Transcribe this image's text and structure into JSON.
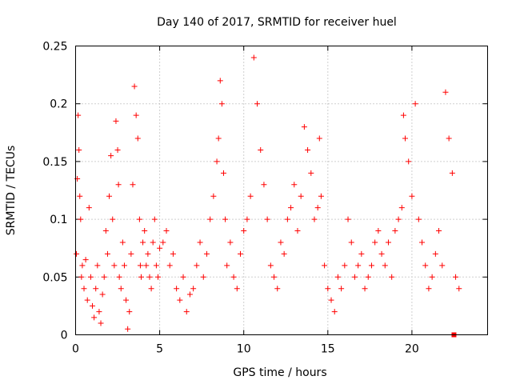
{
  "chart_data": {
    "type": "scatter",
    "title": "Day 140 of 2017, SRMTID for receiver huel",
    "xlabel": "GPS time / hours",
    "ylabel": "SRMTID / TECUs",
    "xlim": [
      0,
      24.5
    ],
    "ylim": [
      0,
      0.25
    ],
    "x_ticks": [
      0,
      5,
      10,
      15,
      20
    ],
    "x_tick_labels": [
      "0",
      "5",
      "10",
      "15",
      "20"
    ],
    "y_ticks": [
      0,
      0.05,
      0.1,
      0.15,
      0.2,
      0.25
    ],
    "y_tick_labels": [
      "0",
      "0.05",
      "0.1",
      "0.15",
      "0.2",
      "0.25"
    ],
    "grid": true,
    "marker": "plus",
    "marker_color": "#ff0000",
    "series": [
      {
        "name": "SRMTID",
        "x": [
          0.05,
          0.1,
          0.15,
          0.2,
          0.25,
          0.3,
          0.35,
          0.4,
          0.5,
          0.6,
          0.7,
          0.8,
          0.9,
          1.0,
          1.1,
          1.2,
          1.3,
          1.4,
          1.5,
          1.6,
          1.7,
          1.8,
          1.9,
          2.0,
          2.1,
          2.2,
          2.3,
          2.4,
          2.5,
          2.55,
          2.6,
          2.7,
          2.8,
          2.9,
          3.0,
          3.1,
          3.2,
          3.3,
          3.4,
          3.5,
          3.6,
          3.7,
          3.8,
          3.85,
          3.9,
          4.0,
          4.1,
          4.2,
          4.3,
          4.4,
          4.5,
          4.6,
          4.7,
          4.8,
          4.9,
          5.0,
          5.2,
          5.4,
          5.6,
          5.8,
          6.0,
          6.2,
          6.4,
          6.6,
          6.8,
          7.0,
          7.2,
          7.4,
          7.6,
          7.8,
          8.0,
          8.2,
          8.4,
          8.5,
          8.6,
          8.7,
          8.8,
          8.9,
          9.0,
          9.2,
          9.4,
          9.6,
          9.8,
          10.0,
          10.2,
          10.4,
          10.6,
          10.8,
          11.0,
          11.2,
          11.4,
          11.6,
          11.8,
          12.0,
          12.2,
          12.4,
          12.6,
          12.8,
          13.0,
          13.2,
          13.4,
          13.6,
          13.8,
          14.0,
          14.2,
          14.4,
          14.5,
          14.6,
          14.8,
          15.0,
          15.2,
          15.4,
          15.6,
          15.8,
          16.0,
          16.2,
          16.4,
          16.6,
          16.8,
          17.0,
          17.2,
          17.4,
          17.6,
          17.8,
          18.0,
          18.2,
          18.4,
          18.6,
          18.8,
          19.0,
          19.2,
          19.4,
          19.5,
          19.6,
          19.8,
          20.0,
          20.2,
          20.4,
          20.6,
          20.8,
          21.0,
          21.2,
          21.4,
          21.6,
          21.8,
          22.0,
          22.2,
          22.4,
          22.6,
          22.8
        ],
        "y": [
          0.07,
          0.135,
          0.19,
          0.16,
          0.12,
          0.1,
          0.05,
          0.06,
          0.04,
          0.065,
          0.03,
          0.11,
          0.05,
          0.025,
          0.015,
          0.04,
          0.06,
          0.02,
          0.01,
          0.035,
          0.05,
          0.09,
          0.07,
          0.12,
          0.155,
          0.1,
          0.06,
          0.185,
          0.16,
          0.13,
          0.05,
          0.04,
          0.08,
          0.06,
          0.03,
          0.005,
          0.02,
          0.07,
          0.13,
          0.215,
          0.19,
          0.17,
          0.1,
          0.06,
          0.05,
          0.08,
          0.09,
          0.06,
          0.07,
          0.05,
          0.04,
          0.08,
          0.1,
          0.06,
          0.05,
          0.075,
          0.08,
          0.09,
          0.06,
          0.07,
          0.04,
          0.03,
          0.05,
          0.02,
          0.035,
          0.04,
          0.06,
          0.08,
          0.05,
          0.07,
          0.1,
          0.12,
          0.15,
          0.17,
          0.22,
          0.2,
          0.14,
          0.1,
          0.06,
          0.08,
          0.05,
          0.04,
          0.07,
          0.09,
          0.1,
          0.12,
          0.24,
          0.2,
          0.16,
          0.13,
          0.1,
          0.06,
          0.05,
          0.04,
          0.08,
          0.07,
          0.1,
          0.11,
          0.13,
          0.09,
          0.12,
          0.18,
          0.16,
          0.14,
          0.1,
          0.11,
          0.17,
          0.12,
          0.06,
          0.04,
          0.03,
          0.02,
          0.05,
          0.04,
          0.06,
          0.1,
          0.08,
          0.05,
          0.06,
          0.07,
          0.04,
          0.05,
          0.06,
          0.08,
          0.09,
          0.07,
          0.06,
          0.08,
          0.05,
          0.09,
          0.1,
          0.11,
          0.19,
          0.17,
          0.15,
          0.12,
          0.2,
          0.1,
          0.08,
          0.06,
          0.04,
          0.05,
          0.07,
          0.09,
          0.06,
          0.21,
          0.17,
          0.14,
          0.05,
          0.04
        ]
      }
    ],
    "outlier_marker": {
      "x": 22.5,
      "y": 0,
      "shape": "square"
    }
  }
}
